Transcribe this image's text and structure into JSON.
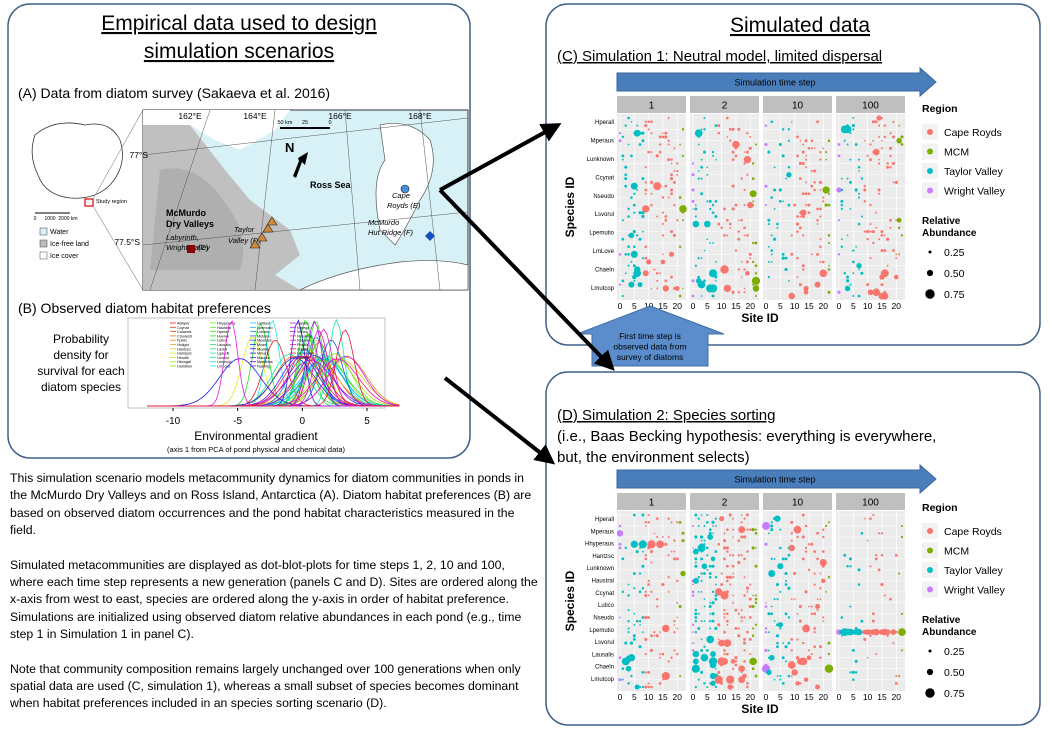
{
  "left": {
    "title": [
      "Empirical data used to design",
      "simulation scenarios"
    ],
    "panel_a": {
      "title": "(A) Data from diatom survey (Sakaeva et al. 2016)",
      "lon_labels": [
        "162°E",
        "164°E",
        "166°E",
        "168°E"
      ],
      "lat_labels": [
        "77°S",
        "77.5°S"
      ],
      "north": "N",
      "scale": [
        "50 km",
        "25",
        "0"
      ],
      "places": [
        "Ross Sea",
        "McMurdo",
        "Dry Valleys",
        "Labyrinth,",
        "Wright Valley",
        "(C)",
        "Taylor",
        "Valley (D)",
        "Cape",
        "Royds (E)",
        "McMurdo",
        "Hut Ridge (F)"
      ],
      "inset": {
        "study": "Study region",
        "scale": [
          "0",
          "1000",
          "2000 km"
        ]
      },
      "legend": [
        "Water",
        "Ice-free land",
        "Ice cover"
      ]
    },
    "panel_b": {
      "title": "(B) Observed diatom habitat preferences",
      "y_label": [
        "Probability",
        "density for",
        "survival for each",
        "diatom species"
      ],
      "xticks": [
        -10,
        -5,
        0,
        5
      ],
      "x_label": "Environmental gradient",
      "x_sublabel": "(axis 1 from PCA of pond physical and chemical data)",
      "species": [
        "Atlaylor",
        "Ccynat",
        "Cclaevis",
        "Cmolesti",
        "Fpelic",
        "Holigot",
        "Hantzsc",
        "Hampyic",
        "Hinutle",
        "Hkongal",
        "Humblon",
        "Hhyperaus",
        "Haustral",
        "Hperall",
        "Hvenor",
        "Lutico",
        "Lausalis",
        "Ldolia",
        "Lgaudii",
        "Lsvorul",
        "Lmutcop",
        "LmLove",
        "Lmtitest",
        "Lpemutio",
        "Lvemeu",
        "Mstomu",
        "Mperaus",
        "Mvani",
        "Mueller",
        "Mmeric",
        "Mauora",
        "Mperidus",
        "Naeblig",
        "Naralis",
        "Ngrega",
        "Nlinea",
        "Ncommu",
        "Nseudo",
        "Pbealli",
        "Sbatis",
        "Lunknown",
        "Chaeln"
      ]
    }
  },
  "description": [
    "This simulation scenario models metacommunity dynamics for diatom communities in ponds in the McMurdo Dry Valleys and on Ross Island, Antarctica (A).  Diatom habitat preferences (B) are based on observed diatom occurrences and the pond habitat characteristics measured in the field.",
    "Simulated metacommunities are displayed as dot-blot-plots for time steps 1, 2, 10 and 100, where each time step represents  a new generation (panels C and D). Sites are ordered along the x-axis from west to east, species are ordered along the y-axis in order of habitat preference.  Simulations are initialized using observed diatom relative abundances in each pond (e.g., time step 1 in Simulation 1 in panel C).",
    "Note that community composition remains largely unchanged over 100 generations when only spatial data are used (C, simulation 1), whereas a small subset of species becomes dominant when habitat preferences included in an species sorting scenario (D)."
  ],
  "right_title": "Simulated data",
  "sim1": {
    "title": [
      "(C) Simulation 1: Neutral model, limited dispersal"
    ],
    "time_arrow": "Simulation time step",
    "facets": [
      "1",
      "2",
      "10",
      "100"
    ],
    "species": [
      "Hperall",
      "Mperaus",
      "Lunknown",
      "Ccynat",
      "Nseudo",
      "Lsvorul",
      "Lpemutio",
      "LmLove",
      "Chaeln",
      "Lmutcop"
    ],
    "xticks": [
      0,
      5,
      10,
      15,
      20
    ],
    "x_label": "Site ID",
    "y_label": "Species ID",
    "legend_title": "Region",
    "regions": [
      "Cape Royds",
      "MCM",
      "Taylor Valley",
      "Wright Valley"
    ],
    "colors": [
      "#f8766d",
      "#7cae00",
      "#00bfc4",
      "#c77cff"
    ],
    "size_title": [
      "Relative",
      "Abundance"
    ],
    "sizes": [
      "0.25",
      "0.50",
      "0.75"
    ],
    "callout": [
      "First time step is",
      "observed data from",
      "survey of diatoms"
    ]
  },
  "sim2": {
    "title": [
      "(D) Simulation 2: Species sorting",
      "(i.e., Baas Becking hypothesis: everything is everywhere,",
      "but, the environment selects)"
    ],
    "time_arrow": "Simulation time step",
    "facets": [
      "1",
      "2",
      "10",
      "100"
    ],
    "species": [
      "Hperall",
      "Mperaus",
      "Hhyperaus",
      "Hantzsc",
      "Lunknown",
      "Haustral",
      "Ccynat",
      "Lutico",
      "Nseudo",
      "Lpemutio",
      "Lsvorul",
      "Lausalis",
      "Chaeln",
      "Lmutcop"
    ],
    "xticks": [
      0,
      5,
      10,
      15,
      20
    ],
    "x_label": "Site ID",
    "y_label": "Species ID",
    "legend_title": "Region",
    "regions": [
      "Cape Royds",
      "MCM",
      "Taylor Valley",
      "Wright Valley"
    ],
    "colors": [
      "#f8766d",
      "#7cae00",
      "#00bfc4",
      "#c77cff"
    ],
    "size_title": [
      "Relative",
      "Abundance"
    ],
    "sizes": [
      "0.25",
      "0.50",
      "0.75"
    ]
  }
}
